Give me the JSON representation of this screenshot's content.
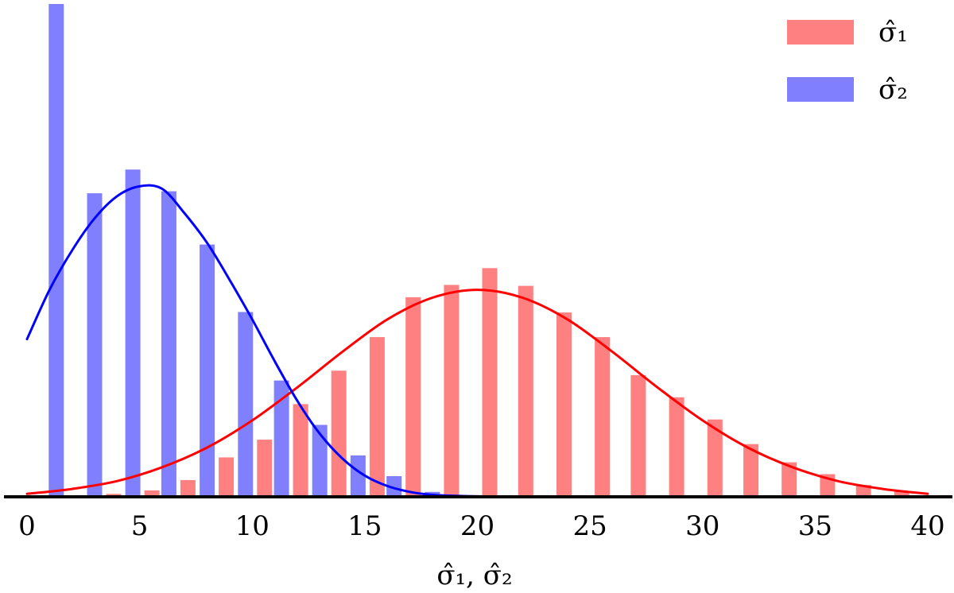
{
  "chart_data": {
    "type": "bar",
    "title": "",
    "xlabel": "σ̂₁, σ̂₂",
    "ylabel": "",
    "xlim": [
      0,
      40
    ],
    "ylim": [
      0,
      1
    ],
    "grid": false,
    "legend_position": "top-right",
    "x_ticks": [
      "0",
      "5",
      "10",
      "15",
      "20",
      "25",
      "30",
      "35",
      "40"
    ],
    "x_tick_values": [
      0,
      5,
      10,
      15,
      20,
      25,
      30,
      35,
      40
    ],
    "series": [
      {
        "name": "σ̂₁",
        "color": "#ff8080",
        "x": [
          1.3,
          3.0,
          4.7,
          6.3,
          8.0,
          9.7,
          11.3,
          13.0,
          14.7,
          16.3,
          18.0,
          19.7,
          21.3,
          23.0,
          24.7,
          26.3,
          28.0,
          29.7,
          31.3,
          33.0,
          34.7,
          36.3,
          38.0
        ],
        "values": [
          0.002,
          0.006,
          0.013,
          0.034,
          0.08,
          0.116,
          0.188,
          0.256,
          0.324,
          0.405,
          0.43,
          0.464,
          0.428,
          0.374,
          0.324,
          0.247,
          0.202,
          0.157,
          0.107,
          0.07,
          0.046,
          0.024,
          0.012
        ]
      },
      {
        "name": "σ̂₂",
        "color": "#8080ff",
        "x": [
          1.3,
          3.0,
          4.7,
          6.3,
          8.0,
          9.7,
          11.3,
          13.0,
          14.7,
          16.3,
          18.0
        ],
        "values": [
          1.0,
          0.616,
          0.664,
          0.62,
          0.512,
          0.375,
          0.236,
          0.146,
          0.084,
          0.042,
          0.01
        ]
      }
    ],
    "fit_curves": [
      {
        "color": "#ff0000",
        "x": [
          0,
          2,
          4,
          6,
          8,
          10,
          12,
          14,
          16,
          18,
          20,
          22,
          24,
          26,
          28,
          30,
          32,
          34,
          36,
          38,
          40
        ],
        "values": [
          0.006,
          0.016,
          0.032,
          0.06,
          0.1,
          0.155,
          0.222,
          0.294,
          0.36,
          0.404,
          0.42,
          0.404,
          0.36,
          0.294,
          0.222,
          0.155,
          0.1,
          0.06,
          0.032,
          0.016,
          0.006
        ]
      },
      {
        "color": "#0000ff",
        "x": [
          0,
          1,
          2,
          3,
          4,
          5,
          6,
          7,
          8,
          9,
          10,
          11,
          12,
          13,
          14,
          15,
          16,
          17,
          18,
          19,
          20,
          22
        ],
        "values": [
          0.32,
          0.42,
          0.5,
          0.565,
          0.61,
          0.63,
          0.625,
          0.575,
          0.515,
          0.44,
          0.36,
          0.275,
          0.195,
          0.128,
          0.078,
          0.043,
          0.022,
          0.01,
          0.004,
          0.002,
          0.001,
          0.0
        ]
      }
    ]
  }
}
